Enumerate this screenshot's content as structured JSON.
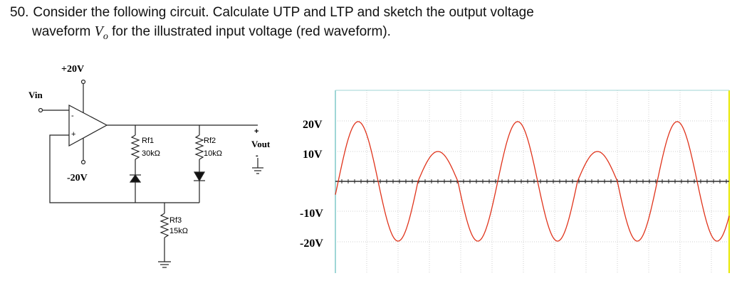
{
  "question": {
    "number": "50.",
    "text_part1": "Consider the following circuit. Calculate UTP and LTP and sketch the output voltage",
    "text_part2_a": "waveform",
    "vo_symbol": "V",
    "vo_subscript": "o",
    "text_part2_b": "for the illustrated input voltage (red waveform)."
  },
  "circuit": {
    "vin_label": "Vin",
    "vpos_label": "+20V",
    "vneg_label": "-20V",
    "opamp_minus": "-",
    "opamp_plus": "+",
    "rf1_name": "Rf1",
    "rf1_value": "30kΩ",
    "rf2_name": "Rf2",
    "rf2_value": "10kΩ",
    "rf3_name": "Rf3",
    "rf3_value": "15kΩ",
    "vout_label": "Vout",
    "vout_plus": "+",
    "vout_minus": "-"
  },
  "waveform": {
    "labels": [
      "20V",
      "10V",
      "-10V",
      "-20V"
    ],
    "signal_color": "#e0341c",
    "axis_color": "#2a2a2a",
    "grid_color": "#bfbfbf",
    "frame_color": "#9fd6d6"
  }
}
